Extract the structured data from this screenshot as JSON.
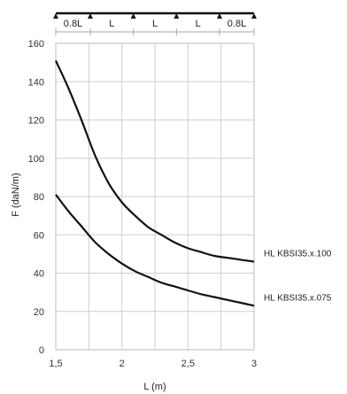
{
  "chart_data": {
    "type": "line",
    "title": "",
    "xlabel": "L (m)",
    "ylabel": "F (daN/m)",
    "xlim": [
      1.5,
      3
    ],
    "ylim": [
      0,
      160
    ],
    "x_ticks": [
      1.5,
      2,
      2.5,
      3
    ],
    "x_tick_labels": [
      "1,5",
      "2",
      "2,5",
      "3"
    ],
    "y_ticks": [
      0,
      20,
      40,
      60,
      80,
      100,
      120,
      140,
      160
    ],
    "y_tick_labels": [
      "0",
      "20",
      "40",
      "60",
      "80",
      "100",
      "120",
      "140",
      "160"
    ],
    "grid": true,
    "series": [
      {
        "name": "HL KBSI35.x.100",
        "x": [
          1.5,
          1.6,
          1.7,
          1.8,
          1.9,
          2.0,
          2.1,
          2.2,
          2.3,
          2.4,
          2.5,
          2.6,
          2.7,
          2.8,
          2.9,
          3.0
        ],
        "y": [
          151,
          136,
          119,
          101,
          87,
          77,
          70,
          64,
          60,
          56,
          53,
          51,
          49,
          48,
          47,
          46
        ]
      },
      {
        "name": "HL KBSI35.x.075",
        "x": [
          1.5,
          1.6,
          1.7,
          1.8,
          1.9,
          2.0,
          2.1,
          2.2,
          2.3,
          2.4,
          2.5,
          2.6,
          2.7,
          2.8,
          2.9,
          3.0
        ],
        "y": [
          81,
          72,
          64,
          56,
          50,
          45,
          41,
          38,
          35,
          33,
          31,
          29,
          27.5,
          26,
          24.5,
          23
        ]
      }
    ],
    "span_diagram": {
      "span_labels": [
        "0.8L",
        "L",
        "L",
        "L",
        "0.8L"
      ],
      "span_ratios": [
        0.8,
        1,
        1,
        1,
        0.8
      ]
    }
  }
}
